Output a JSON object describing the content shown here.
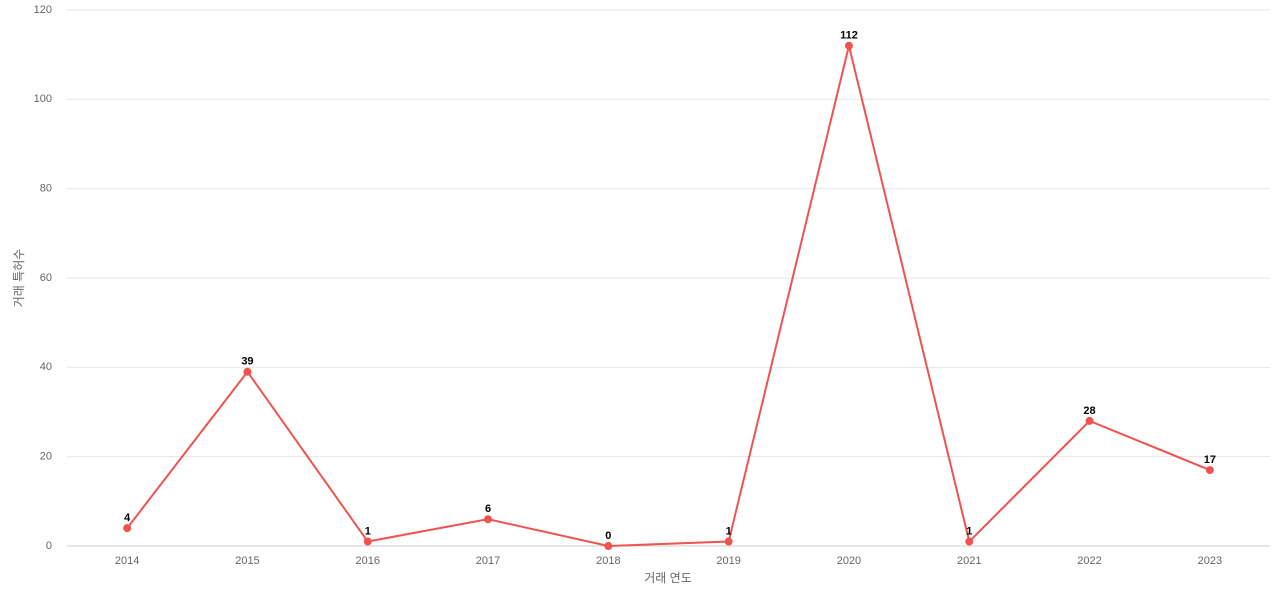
{
  "chart_data": {
    "type": "line",
    "x_label": "거래 연도",
    "y_label": "거래 특허수",
    "categories": [
      "2014",
      "2015",
      "2016",
      "2017",
      "2018",
      "2019",
      "2020",
      "2021",
      "2022",
      "2023"
    ],
    "values": [
      4,
      39,
      1,
      6,
      0,
      1,
      112,
      1,
      28,
      17
    ],
    "color": "#ef5350",
    "ylim": [
      0,
      120
    ],
    "yticks": [
      0,
      20,
      40,
      60,
      80,
      100,
      120
    ],
    "grid": true
  }
}
